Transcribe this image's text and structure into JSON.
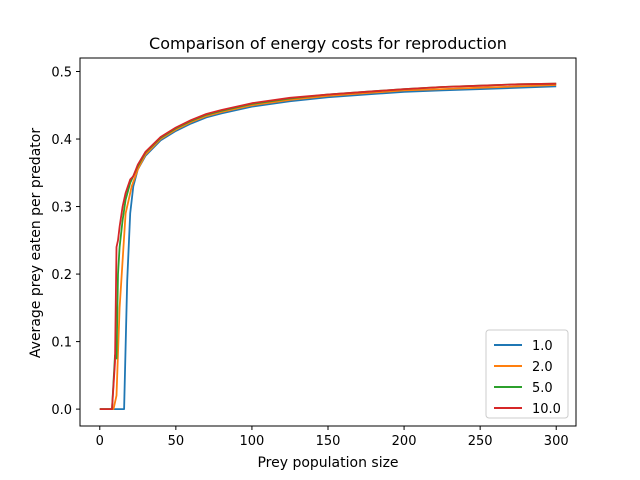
{
  "chart_data": {
    "type": "line",
    "title": "Comparison of energy costs for reproduction",
    "xlabel": "Prey population size",
    "ylabel": "Average prey eaten per predator",
    "xlim": [
      -13,
      313
    ],
    "ylim": [
      -0.025,
      0.52
    ],
    "xticks": [
      0,
      50,
      100,
      150,
      200,
      250,
      300
    ],
    "yticks": [
      0.0,
      0.1,
      0.2,
      0.3,
      0.4,
      0.5
    ],
    "xtick_labels": [
      "0",
      "50",
      "100",
      "150",
      "200",
      "250",
      "300"
    ],
    "ytick_labels": [
      "0.0",
      "0.1",
      "0.2",
      "0.3",
      "0.4",
      "0.5"
    ],
    "grid": false,
    "legend_position": "bottom-right",
    "series": [
      {
        "name": "1.0",
        "color": "#1f77b4",
        "x": [
          0,
          5,
          10,
          14,
          16,
          18,
          20,
          22,
          25,
          30,
          40,
          50,
          60,
          70,
          80,
          100,
          125,
          150,
          175,
          200,
          225,
          250,
          275,
          300
        ],
        "y": [
          0.0,
          0.0,
          0.0,
          0.0,
          0.0,
          0.19,
          0.29,
          0.33,
          0.355,
          0.375,
          0.398,
          0.412,
          0.423,
          0.432,
          0.438,
          0.448,
          0.456,
          0.462,
          0.466,
          0.47,
          0.472,
          0.474,
          0.476,
          0.478
        ]
      },
      {
        "name": "2.0",
        "color": "#ff7f0e",
        "x": [
          0,
          5,
          9,
          11,
          13,
          15,
          17,
          19,
          21,
          25,
          30,
          40,
          50,
          60,
          70,
          80,
          100,
          125,
          150,
          175,
          200,
          225,
          250,
          275,
          300
        ],
        "y": [
          0.0,
          0.0,
          0.0,
          0.02,
          0.15,
          0.22,
          0.29,
          0.31,
          0.33,
          0.355,
          0.377,
          0.4,
          0.414,
          0.425,
          0.434,
          0.44,
          0.45,
          0.458,
          0.464,
          0.468,
          0.472,
          0.474,
          0.476,
          0.478,
          0.48
        ]
      },
      {
        "name": "5.0",
        "color": "#2ca02c",
        "x": [
          0,
          5,
          8,
          10,
          11,
          12,
          13,
          15,
          17,
          20,
          25,
          30,
          40,
          50,
          60,
          70,
          80,
          100,
          125,
          150,
          175,
          200,
          225,
          250,
          275,
          300
        ],
        "y": [
          0.0,
          0.0,
          0.0,
          0.08,
          0.075,
          0.2,
          0.24,
          0.28,
          0.31,
          0.335,
          0.36,
          0.38,
          0.402,
          0.416,
          0.427,
          0.436,
          0.442,
          0.452,
          0.46,
          0.466,
          0.47,
          0.474,
          0.477,
          0.479,
          0.481,
          0.482
        ]
      },
      {
        "name": "10.0",
        "color": "#d62728",
        "x": [
          0,
          5,
          8,
          10,
          11,
          12,
          13,
          15,
          17,
          20,
          22,
          25,
          30,
          40,
          50,
          60,
          70,
          80,
          100,
          125,
          150,
          175,
          200,
          225,
          250,
          275,
          300
        ],
        "y": [
          0.0,
          0.0,
          0.0,
          0.07,
          0.24,
          0.25,
          0.27,
          0.3,
          0.32,
          0.34,
          0.345,
          0.362,
          0.381,
          0.403,
          0.417,
          0.428,
          0.437,
          0.443,
          0.453,
          0.461,
          0.466,
          0.47,
          0.474,
          0.477,
          0.479,
          0.481,
          0.482
        ]
      }
    ]
  }
}
